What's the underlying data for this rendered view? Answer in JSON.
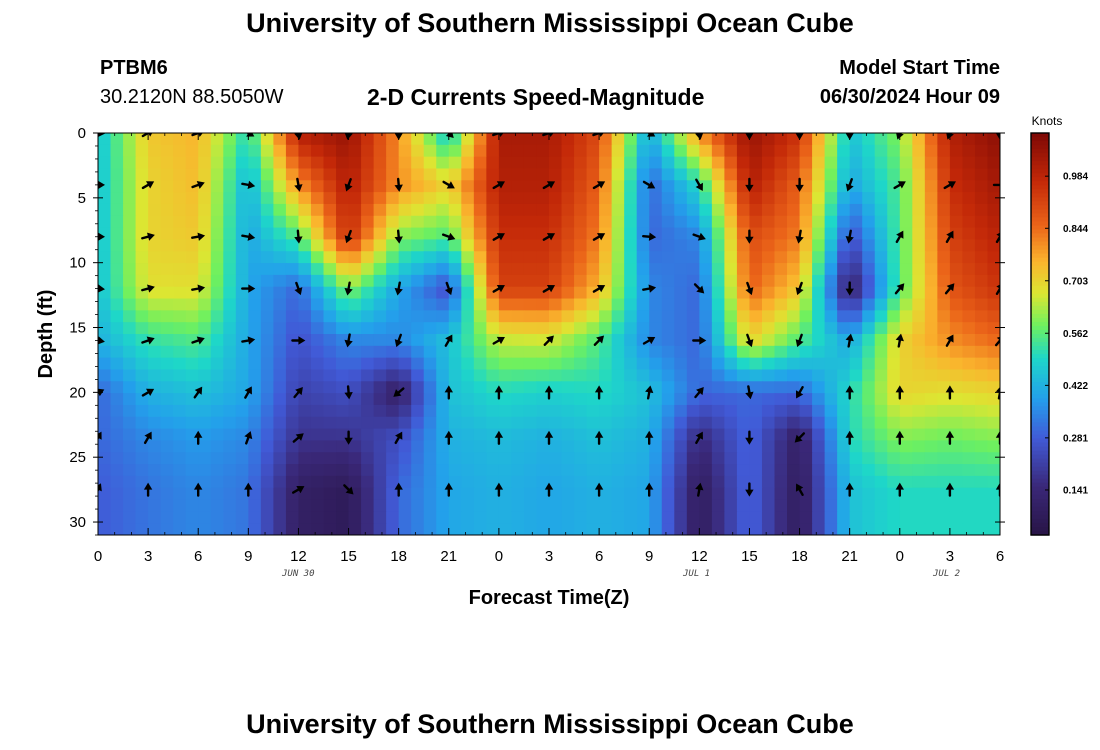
{
  "header": {
    "title": "University of Southern Mississippi Ocean Cube",
    "station": "PTBM6",
    "coords": "30.2120N  88.5050W",
    "product": "2-D Currents Speed-Magnitude",
    "model_start_label": "Model Start Time",
    "model_start_value": "06/30/2024 Hour 09"
  },
  "footer_title": "University of Southern Mississippi Ocean Cube",
  "date_labels": [
    "JUN 30",
    "JUL 1",
    "JUL 2"
  ],
  "chart_data": {
    "type": "heatmap",
    "title": "2-D Currents Speed-Magnitude",
    "xlabel": "Forecast Time(Z)",
    "ylabel": "Depth (ft)",
    "x_tick_labels": [
      "0",
      "3",
      "6",
      "9",
      "12",
      "15",
      "18",
      "21",
      "0",
      "3",
      "6",
      "9",
      "12",
      "15",
      "18",
      "21",
      "0",
      "3",
      "6"
    ],
    "x_hours": [
      0,
      3,
      6,
      9,
      12,
      15,
      18,
      21,
      24,
      27,
      30,
      33,
      36,
      39,
      42,
      45,
      48,
      51,
      54
    ],
    "y_ticks": [
      0,
      5,
      10,
      15,
      20,
      25,
      30
    ],
    "y_range": [
      0,
      31
    ],
    "colorbar_label": "Knots",
    "colorbar_ticks": [
      0.984,
      0.844,
      0.703,
      0.562,
      0.422,
      0.281,
      0.141
    ],
    "colorbar_range": [
      0.02,
      1.1
    ],
    "arrow_depths": [
      0,
      4,
      8,
      12,
      16,
      20,
      23.5,
      27.5
    ],
    "speed_knots": [
      [
        0.45,
        0.72,
        0.75,
        0.5,
        1.0,
        1.05,
        0.8,
        0.45,
        1.02,
        1.02,
        0.9,
        0.4,
        0.8,
        1.05,
        0.95,
        0.45,
        0.6,
        1.0,
        1.07
      ],
      [
        0.45,
        0.7,
        0.74,
        0.42,
        0.8,
        1.0,
        0.8,
        0.7,
        1.0,
        1.0,
        0.86,
        0.3,
        0.5,
        1.0,
        0.86,
        0.4,
        0.55,
        0.96,
        1.03
      ],
      [
        0.45,
        0.7,
        0.72,
        0.4,
        0.55,
        0.96,
        0.6,
        0.55,
        0.96,
        0.96,
        0.82,
        0.3,
        0.35,
        0.9,
        0.82,
        0.25,
        0.55,
        0.92,
        0.99
      ],
      [
        0.45,
        0.68,
        0.68,
        0.4,
        0.3,
        0.6,
        0.4,
        0.25,
        0.92,
        0.92,
        0.75,
        0.35,
        0.3,
        0.86,
        0.72,
        0.1,
        0.55,
        0.88,
        0.95
      ],
      [
        0.42,
        0.52,
        0.55,
        0.4,
        0.26,
        0.35,
        0.35,
        0.45,
        0.65,
        0.66,
        0.55,
        0.35,
        0.3,
        0.7,
        0.55,
        0.4,
        0.7,
        0.8,
        0.85
      ],
      [
        0.3,
        0.42,
        0.45,
        0.4,
        0.22,
        0.25,
        0.1,
        0.45,
        0.5,
        0.48,
        0.5,
        0.45,
        0.3,
        0.3,
        0.3,
        0.5,
        0.7,
        0.68,
        0.7
      ],
      [
        0.3,
        0.35,
        0.38,
        0.35,
        0.18,
        0.18,
        0.25,
        0.42,
        0.44,
        0.42,
        0.45,
        0.42,
        0.15,
        0.3,
        0.1,
        0.5,
        0.6,
        0.58,
        0.6
      ],
      [
        0.28,
        0.32,
        0.35,
        0.32,
        0.1,
        0.07,
        0.3,
        0.4,
        0.42,
        0.4,
        0.42,
        0.4,
        0.08,
        0.3,
        0.08,
        0.45,
        0.5,
        0.5,
        0.5
      ]
    ],
    "direction_deg": [
      [
        95,
        60,
        70,
        120,
        170,
        190,
        180,
        135,
        70,
        70,
        70,
        120,
        170,
        180,
        180,
        180,
        200,
        200,
        180
      ],
      [
        90,
        60,
        70,
        100,
        170,
        200,
        175,
        120,
        60,
        60,
        60,
        120,
        150,
        180,
        180,
        200,
        60,
        60,
        90
      ],
      [
        90,
        75,
        80,
        100,
        175,
        200,
        175,
        110,
        60,
        60,
        60,
        95,
        110,
        180,
        190,
        190,
        30,
        30,
        30
      ],
      [
        95,
        75,
        80,
        90,
        160,
        190,
        190,
        160,
        60,
        60,
        60,
        80,
        135,
        160,
        200,
        180,
        40,
        40,
        30
      ],
      [
        100,
        70,
        70,
        80,
        90,
        190,
        200,
        30,
        60,
        45,
        45,
        60,
        90,
        160,
        200,
        10,
        10,
        30,
        40
      ],
      [
        65,
        60,
        35,
        30,
        40,
        175,
        230,
        0,
        0,
        0,
        0,
        10,
        40,
        170,
        210,
        0,
        0,
        0,
        10
      ],
      [
        30,
        30,
        0,
        20,
        50,
        180,
        30,
        0,
        0,
        0,
        0,
        0,
        30,
        180,
        225,
        0,
        0,
        0,
        0
      ],
      [
        25,
        0,
        0,
        0,
        60,
        135,
        0,
        0,
        0,
        0,
        0,
        0,
        10,
        180,
        330,
        0,
        0,
        0,
        0
      ]
    ]
  }
}
